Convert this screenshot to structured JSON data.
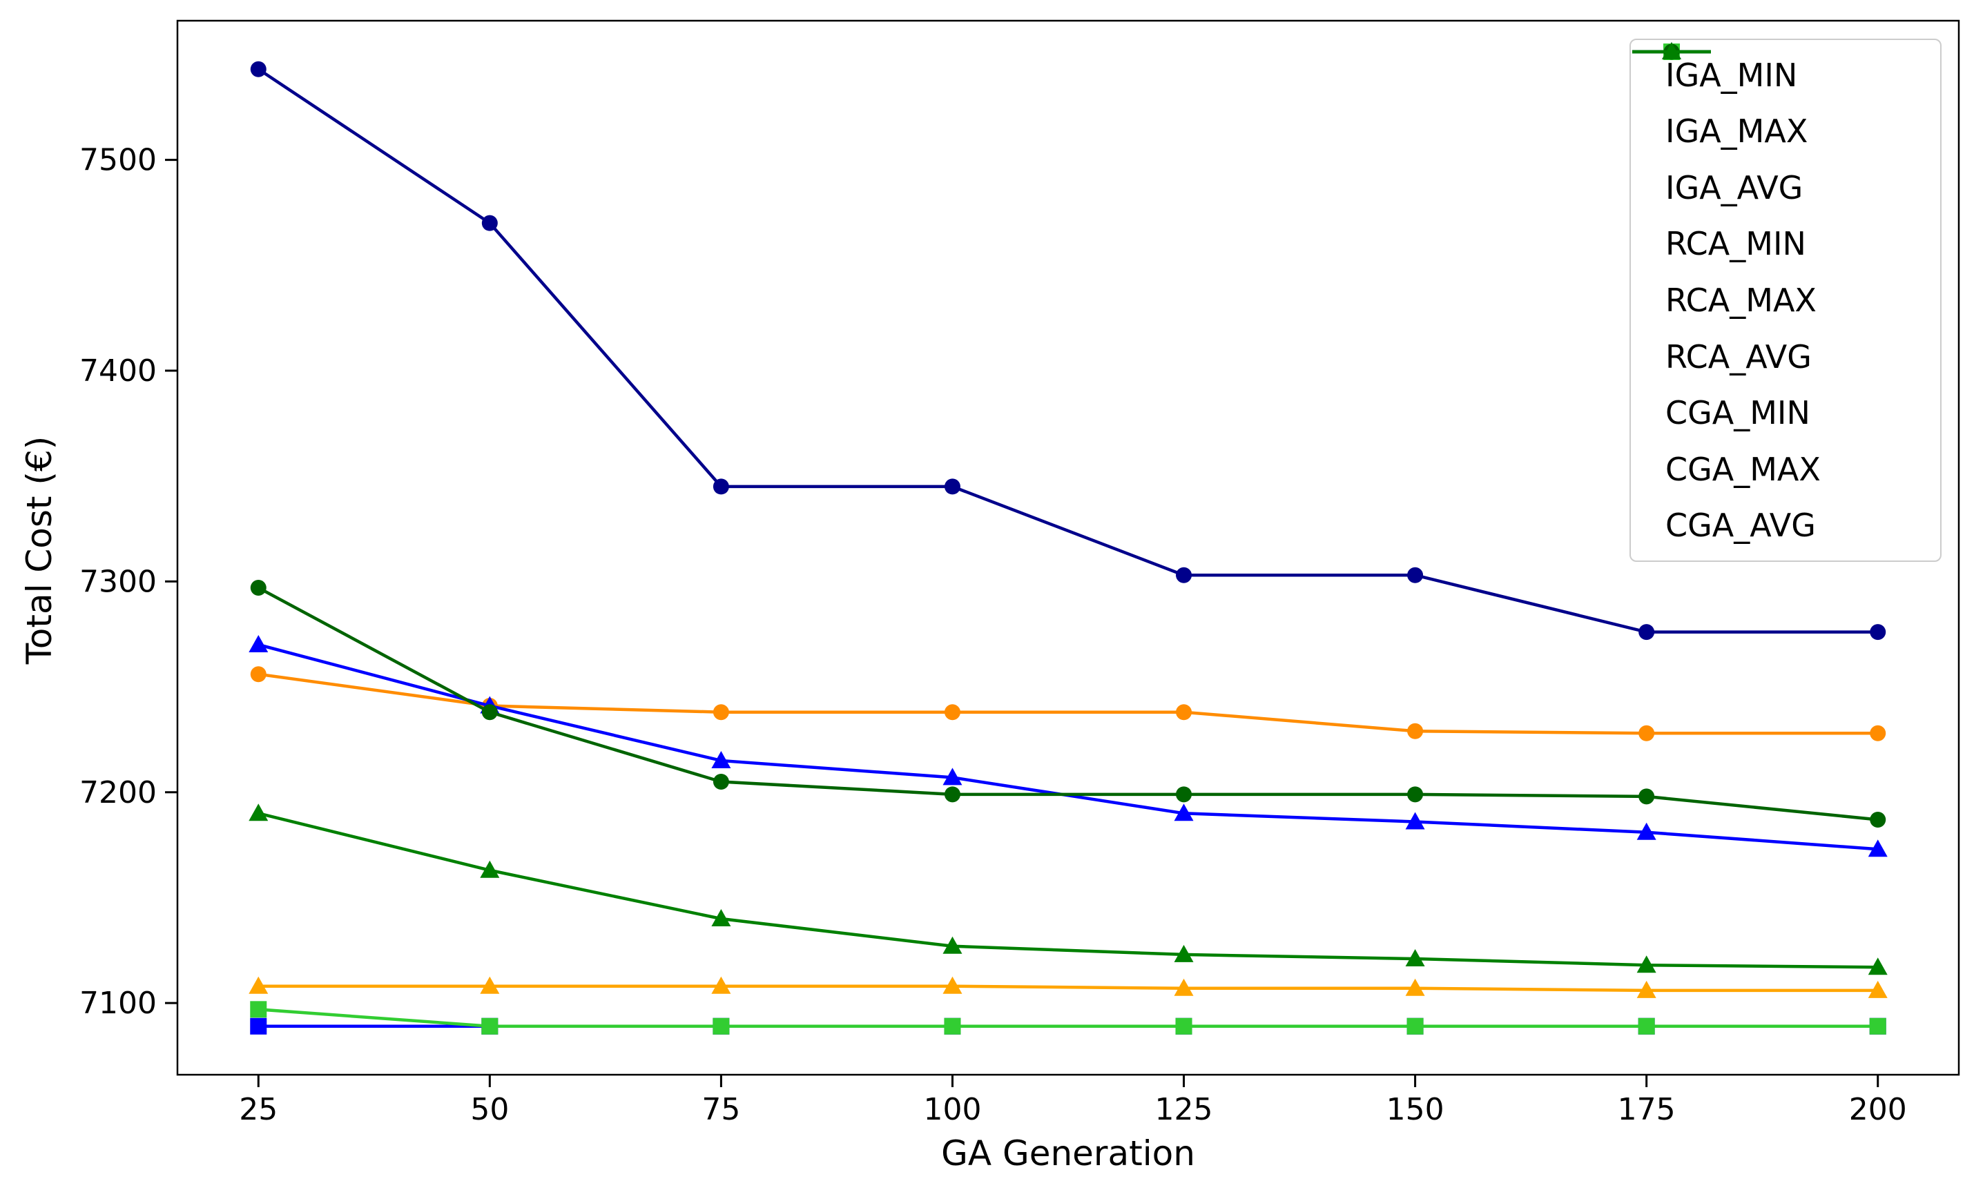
{
  "figure": {
    "background": "#ffffff",
    "axis_color": "#000000",
    "legend_border_color": "#cccccc"
  },
  "chart_data": {
    "type": "line",
    "title": "",
    "xlabel": "GA Generation",
    "ylabel": "Total Cost (€)",
    "x": [
      25,
      50,
      75,
      100,
      125,
      150,
      175,
      200
    ],
    "x_ticks": [
      "25",
      "50",
      "75",
      "100",
      "125",
      "150",
      "175",
      "200"
    ],
    "y_ticks": [
      "7100",
      "7200",
      "7300",
      "7400",
      "7500"
    ],
    "y_tick_values": [
      7100,
      7200,
      7300,
      7400,
      7500
    ],
    "xlim": [
      16.25,
      208.75
    ],
    "ylim": [
      7066,
      7566
    ],
    "grid": false,
    "legend_position": "upper right",
    "series": [
      {
        "name": "IGA_MIN",
        "color": "#ffe4c4",
        "marker": "square",
        "values": [
          7089,
          7089,
          7089,
          7089,
          7089,
          7089,
          7089,
          7089
        ]
      },
      {
        "name": "IGA_MAX",
        "color": "#ff8c00",
        "marker": "circle",
        "values": [
          7256,
          7241,
          7238,
          7238,
          7238,
          7229,
          7228,
          7228
        ]
      },
      {
        "name": "IGA_AVG",
        "color": "#ffa500",
        "marker": "triangle",
        "values": [
          7108,
          7108,
          7108,
          7108,
          7107,
          7107,
          7106,
          7106
        ]
      },
      {
        "name": "RCA_MIN",
        "color": "#0000ff",
        "marker": "square",
        "values": [
          7089,
          7089,
          7089,
          7089,
          7089,
          7089,
          7089,
          7089
        ]
      },
      {
        "name": "RCA_MAX",
        "color": "#00008b",
        "marker": "circle",
        "values": [
          7543,
          7470,
          7345,
          7345,
          7303,
          7303,
          7276,
          7276
        ]
      },
      {
        "name": "RCA_AVG",
        "color": "#0000ff",
        "marker": "triangle",
        "values": [
          7270,
          7241,
          7215,
          7207,
          7190,
          7186,
          7181,
          7173
        ]
      },
      {
        "name": "CGA_MIN",
        "color": "#32cd32",
        "marker": "square",
        "values": [
          7097,
          7089,
          7089,
          7089,
          7089,
          7089,
          7089,
          7089
        ]
      },
      {
        "name": "CGA_MAX",
        "color": "#006400",
        "marker": "circle",
        "values": [
          7297,
          7238,
          7205,
          7199,
          7199,
          7199,
          7198,
          7187
        ]
      },
      {
        "name": "CGA_AVG",
        "color": "#008000",
        "marker": "triangle",
        "values": [
          7190,
          7163,
          7140,
          7127,
          7123,
          7121,
          7118,
          7117
        ]
      }
    ]
  }
}
